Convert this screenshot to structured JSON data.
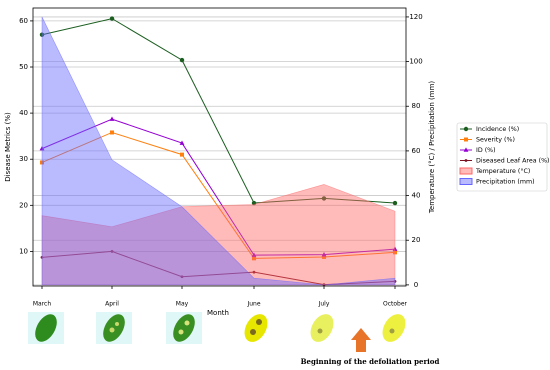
{
  "chart_data": {
    "type": "line",
    "categories": [
      "March",
      "April",
      "May",
      "June",
      "July",
      "October"
    ],
    "x_label": "Month",
    "y_label": "Disease Metrics (%)",
    "y2_label": "Temperature (°C) / Precipitation (mm)",
    "ylim": [
      2.5,
      62.8
    ],
    "yticks": [
      10,
      20,
      30,
      40,
      50,
      60
    ],
    "y2lim": [
      -0.5,
      124
    ],
    "y2ticks": [
      0,
      20,
      40,
      60,
      80,
      100,
      120
    ],
    "grid": true,
    "legend": "right",
    "annotation": "Beginning of the defoliation period",
    "series": [
      {
        "name": "Incidence (%)",
        "color": "#1b5e20",
        "marker": "circle",
        "values": [
          57,
          60.5,
          51.5,
          20.5,
          21.5,
          20.5
        ]
      },
      {
        "name": "Severity (%)",
        "color": "#ff7f0e",
        "marker": "square",
        "values": [
          29.3,
          35.8,
          31,
          8.5,
          8.8,
          9.8
        ]
      },
      {
        "name": "ID (%)",
        "color": "#9400d3",
        "marker": "triangle",
        "values": [
          32.3,
          38.7,
          33.5,
          9.2,
          9.3,
          10.5
        ]
      },
      {
        "name": "Diseased Leaf Area (%)",
        "color": "#7a1020",
        "marker": "dot",
        "values": [
          8.7,
          10,
          4.5,
          5.5,
          2.8,
          3.5
        ]
      },
      {
        "name": "Temperature (°C)",
        "color": "#ff6666",
        "kind": "area",
        "axis": "y2",
        "values": [
          31,
          26,
          35,
          36,
          45,
          33
        ]
      },
      {
        "name": "Precipitation (mm)",
        "color": "#6666ff",
        "kind": "area",
        "axis": "y2",
        "values": [
          120,
          56,
          35,
          3,
          0,
          3
        ]
      }
    ]
  }
}
